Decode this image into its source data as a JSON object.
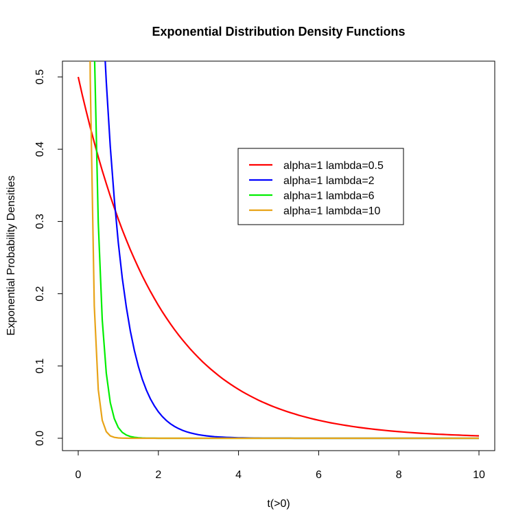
{
  "chart_data": {
    "type": "line",
    "title": "Exponential Distribution Density Functions",
    "xlabel": "t(>0)",
    "ylabel": "Exponential Probability Densities",
    "xlim": [
      0,
      10
    ],
    "ylim": [
      0,
      0.5
    ],
    "x_sampling": {
      "from": 0,
      "to": 10,
      "by": 0.1
    },
    "function": "lambda * exp(-lambda * t)",
    "xticks": [
      "0",
      "2",
      "4",
      "6",
      "8",
      "10"
    ],
    "xtick_values": [
      0,
      2,
      4,
      6,
      8,
      10
    ],
    "yticks": [
      "0.0",
      "0.1",
      "0.2",
      "0.3",
      "0.4",
      "0.5"
    ],
    "ytick_values": [
      0,
      0.1,
      0.2,
      0.3,
      0.4,
      0.5
    ],
    "grid": false,
    "legend_placement": "upper-center-right",
    "series": [
      {
        "name": "alpha=1 lambda=0.5",
        "alpha": 1,
        "lambda": 0.5,
        "color": "#ff0000"
      },
      {
        "name": "alpha=1 lambda=2",
        "alpha": 1,
        "lambda": 2,
        "color": "#0000ff"
      },
      {
        "name": "alpha=1 lambda=6",
        "alpha": 1,
        "lambda": 6,
        "color": "#00ee00"
      },
      {
        "name": "alpha=1 lambda=10",
        "alpha": 1,
        "lambda": 10,
        "color": "#e8a317"
      }
    ]
  }
}
